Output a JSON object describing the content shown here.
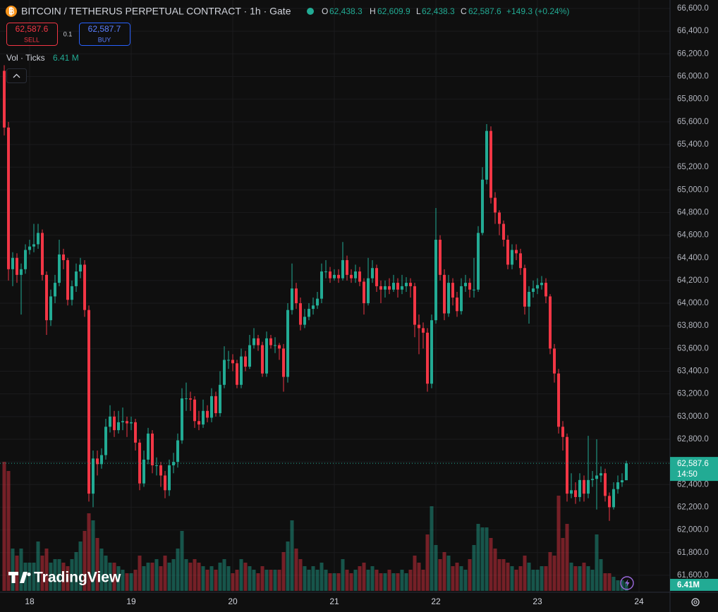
{
  "header": {
    "title": "BITCOIN / TETHERUS PERPETUAL CONTRACT · 1h · Gate",
    "o_label": "O",
    "open": "62,438.3",
    "h_label": "H",
    "high": "62,609.9",
    "l_label": "L",
    "low": "62,438.3",
    "c_label": "C",
    "close": "62,587.6",
    "change": "+149.3 (+0.24%)"
  },
  "trade": {
    "sell_price": "62,587.6",
    "sell": "SELL",
    "size": "0.1",
    "buy_price": "62,587.7",
    "buy": "BUY"
  },
  "volume_legend": {
    "label": "Vol · Ticks",
    "value": "6.41 M"
  },
  "logo": "TradingView",
  "chart_data": {
    "type": "candlestick",
    "up_color": "#22ab94",
    "down_color": "#f23645",
    "grid": true,
    "ylim": [
      61450,
      66675
    ],
    "yticks": [
      {
        "value": 61600,
        "label": "61,600.0"
      },
      {
        "value": 61800,
        "label": "61,800.0"
      },
      {
        "value": 62000,
        "label": "62,000.0"
      },
      {
        "value": 62200,
        "label": "62,200.0"
      },
      {
        "value": 62400,
        "label": "62,400.0"
      },
      {
        "value": 62600,
        "label": "62,600.0"
      },
      {
        "value": 62800,
        "label": "62,800.0"
      },
      {
        "value": 63000,
        "label": "63,000.0"
      },
      {
        "value": 63200,
        "label": "63,200.0"
      },
      {
        "value": 63400,
        "label": "63,400.0"
      },
      {
        "value": 63600,
        "label": "63,600.0"
      },
      {
        "value": 63800,
        "label": "63,800.0"
      },
      {
        "value": 64000,
        "label": "64,000.0"
      },
      {
        "value": 64200,
        "label": "64,200.0"
      },
      {
        "value": 64400,
        "label": "64,400.0"
      },
      {
        "value": 64600,
        "label": "64,600.0"
      },
      {
        "value": 64800,
        "label": "64,800.0"
      },
      {
        "value": 65000,
        "label": "65,000.0"
      },
      {
        "value": 65200,
        "label": "65,200.0"
      },
      {
        "value": 65400,
        "label": "65,400.0"
      },
      {
        "value": 65600,
        "label": "65,600.0"
      },
      {
        "value": 65800,
        "label": "65,800.0"
      },
      {
        "value": 66000,
        "label": "66,000.0"
      },
      {
        "value": 66200,
        "label": "66,200.0"
      },
      {
        "value": 66400,
        "label": "66,400.0"
      },
      {
        "value": 66600,
        "label": "66,600.0"
      }
    ],
    "xticks": [
      {
        "value": 6,
        "label": "18"
      },
      {
        "value": 30,
        "label": "19"
      },
      {
        "value": 54,
        "label": "20"
      },
      {
        "value": 78,
        "label": "21"
      },
      {
        "value": 102,
        "label": "22"
      },
      {
        "value": 126,
        "label": "23"
      },
      {
        "value": 150,
        "label": "24"
      }
    ],
    "last_price": {
      "value": 62587.6,
      "label": "62,587.6"
    },
    "countdown": "14:50",
    "last_volume_label": "6.41M",
    "open": [
      66050,
      65550,
      64300,
      64400,
      64250,
      64300,
      64470,
      64500,
      64520,
      64620,
      64250,
      63850,
      64060,
      64180,
      64430,
      64380,
      64030,
      64150,
      64280,
      64340,
      63940,
      62320,
      62630,
      62580,
      62660,
      62910,
      63000,
      62880,
      62950,
      62960,
      62940,
      62950,
      62770,
      62410,
      62620,
      62850,
      62570,
      62570,
      62480,
      62350,
      62570,
      62600,
      62790,
      63160,
      63160,
      63150,
      62960,
      62930,
      63050,
      62990,
      63180,
      63030,
      63280,
      63500,
      63500,
      63470,
      63280,
      63530,
      63440,
      63630,
      63690,
      63630,
      63380,
      63690,
      63630,
      63630,
      63600,
      63350,
      63940,
      64130,
      64000,
      63810,
      63880,
      63950,
      63980,
      64040,
      64280,
      64280,
      64220,
      64250,
      64220,
      64380,
      64250,
      64220,
      64280,
      64190,
      64000,
      64220,
      64310,
      64150,
      64120,
      64150,
      64120,
      64180,
      64120,
      64150,
      64180,
      64150,
      63810,
      63780,
      63740,
      63290,
      63850,
      64560,
      64250,
      63910,
      64180,
      64050,
      63930,
      64150,
      64180,
      64120,
      64120,
      64620,
      65090,
      65520,
      64930,
      64800,
      64700,
      64560,
      64340,
      64470,
      64440,
      64310,
      63970,
      64100,
      64130,
      64160,
      64180,
      64060,
      63600,
      63380,
      62910,
      62820,
      62320,
      62350,
      62290,
      62440,
      62320,
      62440,
      62450,
      62480,
      62500,
      62300,
      62200,
      62360,
      62420,
      62438.3
    ],
    "high": [
      66100,
      65600,
      64450,
      64440,
      64350,
      64520,
      64560,
      64700,
      64700,
      64650,
      64280,
      64120,
      64250,
      64560,
      64480,
      64400,
      64200,
      64350,
      64400,
      64380,
      63980,
      62700,
      62700,
      62720,
      62980,
      63100,
      63050,
      63050,
      63080,
      63000,
      63000,
      62980,
      62800,
      62700,
      62900,
      62880,
      62640,
      62600,
      62520,
      62620,
      62680,
      62850,
      63250,
      63300,
      63220,
      63180,
      63050,
      63150,
      63100,
      63250,
      63220,
      63400,
      63620,
      63580,
      63550,
      63500,
      63600,
      63580,
      63720,
      63780,
      63720,
      63660,
      63750,
      63720,
      63700,
      63650,
      63640,
      64000,
      64350,
      64180,
      64050,
      63950,
      64000,
      64050,
      64100,
      64350,
      64380,
      64320,
      64300,
      64300,
      64540,
      64420,
      64300,
      64340,
      64320,
      64220,
      64400,
      64380,
      64340,
      64200,
      64200,
      64220,
      64250,
      64220,
      64250,
      64230,
      64220,
      64180,
      63900,
      63830,
      63780,
      63900,
      64840,
      64600,
      64300,
      64250,
      64220,
      64100,
      64220,
      64250,
      64220,
      64400,
      64680,
      65200,
      65580,
      65560,
      64980,
      64820,
      64730,
      64600,
      64520,
      64520,
      64480,
      64340,
      64150,
      64200,
      64220,
      64240,
      64220,
      64080,
      63640,
      63420,
      62960,
      62850,
      62500,
      62420,
      62500,
      62480,
      62830,
      62520,
      62800,
      62560,
      62540,
      62330,
      62420,
      62480,
      62500,
      62609.9
    ],
    "low": [
      65480,
      64200,
      64150,
      64180,
      63900,
      64260,
      64430,
      64450,
      64480,
      64200,
      63720,
      63800,
      64000,
      64150,
      64300,
      63980,
      63980,
      64100,
      64220,
      63880,
      62250,
      62200,
      62480,
      62540,
      62620,
      62860,
      62820,
      62850,
      62880,
      62820,
      62880,
      62700,
      62350,
      62380,
      62580,
      62500,
      62480,
      62380,
      62280,
      62300,
      62500,
      62550,
      62760,
      63050,
      63050,
      62900,
      62880,
      62900,
      62950,
      62950,
      63000,
      63000,
      63250,
      63420,
      63400,
      63250,
      63250,
      63400,
      63420,
      63600,
      63580,
      63350,
      63350,
      63600,
      63560,
      63500,
      63220,
      63300,
      63900,
      63950,
      63760,
      63780,
      63850,
      63900,
      63950,
      64000,
      64220,
      64180,
      64200,
      64180,
      64200,
      64200,
      64180,
      64180,
      64150,
      63900,
      63980,
      64180,
      64100,
      64000,
      64050,
      64080,
      64100,
      64050,
      64080,
      64100,
      64050,
      63700,
      63550,
      63600,
      63220,
      63250,
      63820,
      64200,
      63850,
      63880,
      63980,
      63880,
      63900,
      64100,
      64050,
      64050,
      64100,
      64600,
      65050,
      64880,
      64700,
      64600,
      64500,
      64300,
      64300,
      64380,
      64250,
      63900,
      63820,
      64050,
      64080,
      64120,
      64000,
      63550,
      63300,
      62850,
      62700,
      62250,
      62280,
      62230,
      62250,
      62250,
      62280,
      62380,
      62180,
      62420,
      62250,
      62080,
      62180,
      62320,
      62380,
      62438.3
    ],
    "close": [
      65550,
      64300,
      64400,
      64250,
      64300,
      64470,
      64500,
      64520,
      64620,
      64250,
      63850,
      64060,
      64180,
      64430,
      64380,
      64030,
      64150,
      64280,
      64340,
      63940,
      62320,
      62630,
      62580,
      62660,
      62910,
      63000,
      62880,
      62950,
      62960,
      62940,
      62950,
      62770,
      62410,
      62620,
      62850,
      62570,
      62570,
      62480,
      62350,
      62570,
      62600,
      62790,
      63160,
      63160,
      63150,
      62960,
      62930,
      63050,
      62990,
      63180,
      63030,
      63280,
      63500,
      63500,
      63470,
      63280,
      63530,
      63440,
      63630,
      63690,
      63630,
      63380,
      63690,
      63630,
      63630,
      63600,
      63350,
      63940,
      64130,
      64000,
      63810,
      63880,
      63950,
      63980,
      64040,
      64280,
      64280,
      64220,
      64250,
      64220,
      64380,
      64250,
      64220,
      64280,
      64190,
      64000,
      64220,
      64310,
      64150,
      64120,
      64150,
      64120,
      64180,
      64120,
      64150,
      64180,
      64150,
      63810,
      63780,
      63740,
      63290,
      63850,
      64560,
      64250,
      63910,
      64180,
      64050,
      63930,
      64150,
      64180,
      64120,
      64120,
      64620,
      65090,
      65520,
      64930,
      64800,
      64700,
      64560,
      64340,
      64470,
      64440,
      64310,
      63970,
      64100,
      64130,
      64160,
      64180,
      64060,
      63600,
      63380,
      62910,
      62820,
      62320,
      62350,
      62290,
      62440,
      62320,
      62440,
      62450,
      62480,
      62500,
      62300,
      62200,
      62360,
      62420,
      62438.3,
      62587.6
    ],
    "volume": [
      91.5,
      85,
      30,
      25,
      30,
      20,
      20,
      20,
      35,
      25,
      30,
      20,
      22.5,
      22.5,
      20,
      17.5,
      22.5,
      27.5,
      35,
      42.5,
      55,
      50,
      37.5,
      30,
      25,
      20,
      20,
      17.5,
      15,
      12.5,
      12.5,
      15,
      25,
      17.5,
      20,
      20,
      22.5,
      17.5,
      25,
      20,
      22.5,
      30,
      42.5,
      22.5,
      20,
      22.5,
      20,
      17.5,
      15,
      17.5,
      15,
      20,
      22.5,
      17.5,
      12.5,
      15,
      22.5,
      20,
      17.5,
      15,
      12.5,
      17.5,
      15,
      15,
      15,
      15,
      27.5,
      35,
      50,
      30,
      22.5,
      17.5,
      15,
      17.5,
      15,
      20,
      15,
      12.5,
      12.5,
      12.5,
      22.5,
      15,
      12.5,
      15,
      17.5,
      20,
      15,
      17.5,
      15,
      12.5,
      12.5,
      15,
      12.5,
      12.5,
      15,
      12.5,
      15,
      25,
      20,
      15,
      40,
      60,
      32.5,
      22.5,
      27.5,
      25,
      17.5,
      20,
      17.5,
      15,
      22.5,
      32.5,
      47.5,
      45,
      45,
      37.5,
      30,
      22.5,
      22.5,
      20,
      17.5,
      15,
      17.5,
      25,
      20,
      15,
      15,
      17.5,
      17.5,
      27.5,
      25,
      67.5,
      37.5,
      47.5,
      20,
      17.5,
      17.5,
      20,
      17.5,
      15,
      40,
      22.5,
      12.5,
      12.5,
      10,
      7.5,
      7.5,
      6.41
    ]
  }
}
